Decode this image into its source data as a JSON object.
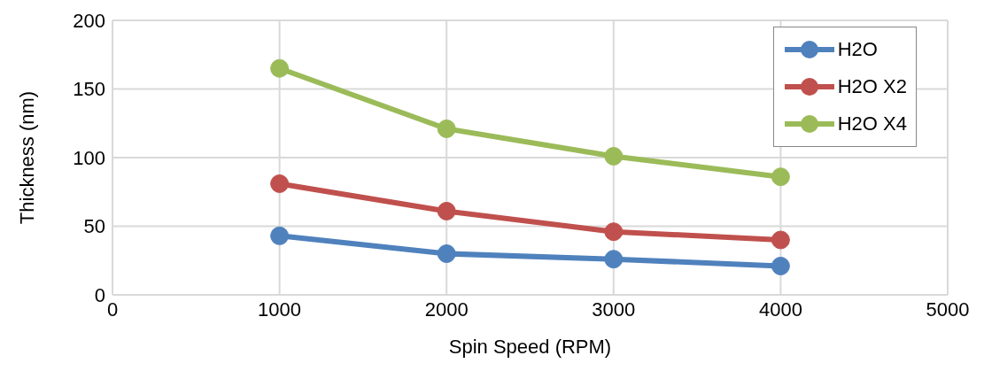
{
  "chart_data": {
    "type": "line",
    "xlabel": "Spin Speed (RPM)",
    "ylabel": "Thickness (nm)",
    "x": [
      1000,
      2000,
      3000,
      4000
    ],
    "series": [
      {
        "name": "H2O",
        "color": "#4f81bd",
        "values": [
          43,
          30,
          26,
          21
        ]
      },
      {
        "name": "H2O X2",
        "color": "#c0504d",
        "values": [
          81,
          61,
          46,
          40
        ]
      },
      {
        "name": "H2O X4",
        "color": "#9bbb59",
        "values": [
          165,
          121,
          101,
          86
        ]
      }
    ],
    "xlim": [
      0,
      5000
    ],
    "xticks": [
      0,
      1000,
      2000,
      3000,
      4000,
      5000
    ],
    "ylim": [
      0,
      200
    ],
    "yticks": [
      0,
      50,
      100,
      150,
      200
    ],
    "grid": true,
    "legend": "top right",
    "marker": "circle",
    "line_style": "solid"
  }
}
